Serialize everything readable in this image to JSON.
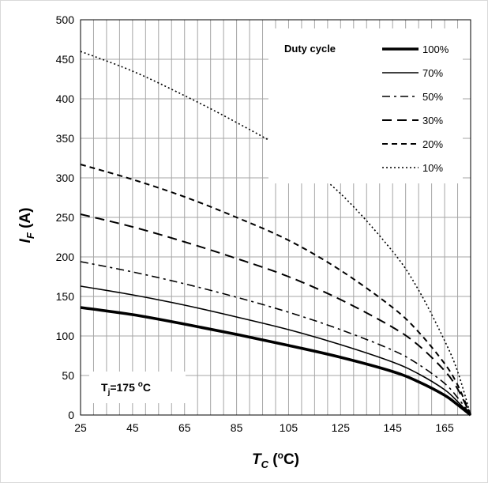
{
  "chart_data": {
    "type": "line",
    "xlabel": {
      "main": "T",
      "sub": "C",
      "unit_open": " (",
      "unit_sup": "o",
      "unit_close": "C)"
    },
    "ylabel": {
      "main": "I",
      "sub": "F",
      "unit": " (A)"
    },
    "xlim": [
      25,
      175
    ],
    "ylim": [
      0,
      500
    ],
    "x_ticks": [
      25,
      45,
      65,
      85,
      105,
      125,
      145,
      165
    ],
    "y_ticks": [
      0,
      50,
      100,
      150,
      200,
      250,
      300,
      350,
      400,
      450,
      500
    ],
    "grid": {
      "vertical_step": 5,
      "horizontal_step": 50,
      "color": "#a6a6a6"
    },
    "legend": {
      "title": "Duty cycle",
      "placement": "top-right"
    },
    "annotation": {
      "main": "T",
      "sub": "j",
      "eq": "=175 ",
      "sup": "o",
      "unit": "C"
    },
    "series": [
      {
        "name": "100%",
        "style": "solid-thick",
        "points": [
          [
            25,
            136
          ],
          [
            45,
            127
          ],
          [
            65,
            115
          ],
          [
            85,
            102
          ],
          [
            105,
            88
          ],
          [
            125,
            73
          ],
          [
            145,
            55
          ],
          [
            155,
            42
          ],
          [
            165,
            25
          ],
          [
            170,
            13
          ],
          [
            175,
            0
          ]
        ]
      },
      {
        "name": "70%",
        "style": "solid",
        "points": [
          [
            25,
            163
          ],
          [
            45,
            152
          ],
          [
            65,
            139
          ],
          [
            85,
            124
          ],
          [
            105,
            108
          ],
          [
            125,
            89
          ],
          [
            145,
            67
          ],
          [
            155,
            52
          ],
          [
            165,
            32
          ],
          [
            170,
            17
          ],
          [
            175,
            0
          ]
        ]
      },
      {
        "name": "50%",
        "style": "dash-dot",
        "points": [
          [
            25,
            194
          ],
          [
            45,
            181
          ],
          [
            65,
            166
          ],
          [
            85,
            149
          ],
          [
            105,
            130
          ],
          [
            125,
            108
          ],
          [
            145,
            82
          ],
          [
            155,
            64
          ],
          [
            165,
            40
          ],
          [
            170,
            22
          ],
          [
            175,
            0
          ]
        ]
      },
      {
        "name": "30%",
        "style": "long-dash",
        "points": [
          [
            25,
            254
          ],
          [
            45,
            238
          ],
          [
            65,
            219
          ],
          [
            85,
            198
          ],
          [
            105,
            175
          ],
          [
            125,
            146
          ],
          [
            145,
            111
          ],
          [
            155,
            88
          ],
          [
            165,
            56
          ],
          [
            170,
            33
          ],
          [
            175,
            0
          ]
        ]
      },
      {
        "name": "20%",
        "style": "dash",
        "points": [
          [
            25,
            317
          ],
          [
            45,
            298
          ],
          [
            65,
            276
          ],
          [
            85,
            250
          ],
          [
            105,
            221
          ],
          [
            125,
            183
          ],
          [
            145,
            136
          ],
          [
            155,
            105
          ],
          [
            165,
            65
          ],
          [
            170,
            38
          ],
          [
            175,
            0
          ]
        ]
      },
      {
        "name": "10%",
        "style": "dotted",
        "points": [
          [
            25,
            460
          ],
          [
            45,
            435
          ],
          [
            65,
            404
          ],
          [
            85,
            370
          ],
          [
            105,
            332
          ],
          [
            125,
            280
          ],
          [
            145,
            207
          ],
          [
            155,
            158
          ],
          [
            165,
            94
          ],
          [
            170,
            55
          ],
          [
            175,
            0
          ]
        ]
      }
    ]
  }
}
